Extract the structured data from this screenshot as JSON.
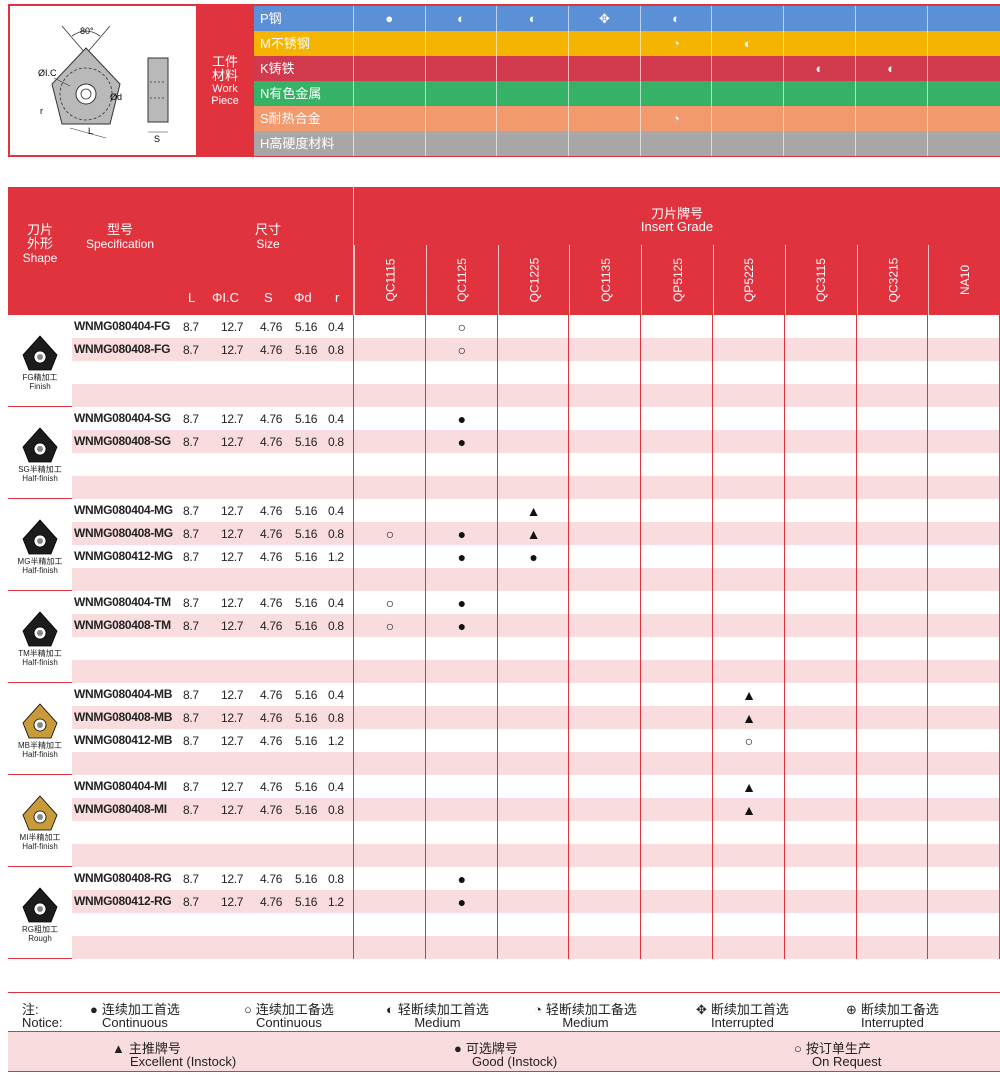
{
  "diagram": {
    "angle": "80°",
    "ic": "ØI.C",
    "d": "Ød",
    "r": "r",
    "l": "L",
    "s": "S"
  },
  "workpiece": {
    "label_cn_1": "工件",
    "label_cn_2": "材料",
    "label_en_1": "Work",
    "label_en_2": "Piece"
  },
  "materials": [
    {
      "name": "P钢",
      "color": "#5b8fd6",
      "marks": [
        "●",
        "◐",
        "◐",
        "✥",
        "◐",
        "",
        "",
        "",
        ""
      ]
    },
    {
      "name": "M不锈钢",
      "color": "#f5b400",
      "marks": [
        "",
        "",
        "",
        "",
        "◔",
        "◐",
        "",
        "",
        ""
      ]
    },
    {
      "name": "K铸铁",
      "color": "#d13a4d",
      "marks": [
        "",
        "",
        "",
        "",
        "",
        "",
        "◐",
        "◐",
        ""
      ]
    },
    {
      "name": "N有色金属",
      "color": "#35b265",
      "marks": [
        "",
        "",
        "",
        "",
        "",
        "",
        "",
        "",
        ""
      ]
    },
    {
      "name": "S耐热合金",
      "color": "#f29a6e",
      "marks": [
        "",
        "",
        "",
        "",
        "◔",
        "",
        "",
        "",
        ""
      ]
    },
    {
      "name": "H高硬度材料",
      "color": "#a7a7a7",
      "marks": [
        "",
        "",
        "",
        "",
        "",
        "",
        "",
        "",
        ""
      ]
    }
  ],
  "header": {
    "shape_cn_1": "刀片",
    "shape_cn_2": "外形",
    "shape_en": "Shape",
    "spec_cn": "型号",
    "spec_en": "Specification",
    "size_cn": "尺寸",
    "size_en": "Size",
    "grade_cn": "刀片牌号",
    "grade_en": "Insert Grade",
    "dims": [
      "L",
      "ΦI.C",
      "S",
      "Φd",
      "r"
    ],
    "grades": [
      "QC1115",
      "QC1125",
      "QC1225",
      "QC1135",
      "QP5125",
      "QP5225",
      "QC3115",
      "QC3215",
      "NA10"
    ]
  },
  "groups": [
    {
      "caption_1": "FG精加工",
      "caption_2": "Finish",
      "color": "#1c1c1c",
      "rows": [
        {
          "spec": "WNMG080404-FG",
          "dims": [
            "8.7",
            "12.7",
            "4.76",
            "5.16",
            "0.4"
          ],
          "marks": [
            "",
            "○",
            "",
            "",
            "",
            "",
            "",
            "",
            ""
          ]
        },
        {
          "spec": "WNMG080408-FG",
          "dims": [
            "8.7",
            "12.7",
            "4.76",
            "5.16",
            "0.8"
          ],
          "marks": [
            "",
            "○",
            "",
            "",
            "",
            "",
            "",
            "",
            ""
          ]
        }
      ]
    },
    {
      "caption_1": "SG半精加工",
      "caption_2": "Half-finish",
      "color": "#1c1c1c",
      "rows": [
        {
          "spec": "WNMG080404-SG",
          "dims": [
            "8.7",
            "12.7",
            "4.76",
            "5.16",
            "0.4"
          ],
          "marks": [
            "",
            "●",
            "",
            "",
            "",
            "",
            "",
            "",
            ""
          ]
        },
        {
          "spec": "WNMG080408-SG",
          "dims": [
            "8.7",
            "12.7",
            "4.76",
            "5.16",
            "0.8"
          ],
          "marks": [
            "",
            "●",
            "",
            "",
            "",
            "",
            "",
            "",
            ""
          ]
        }
      ]
    },
    {
      "caption_1": "MG半精加工",
      "caption_2": "Half-finish",
      "color": "#1c1c1c",
      "rows": [
        {
          "spec": "WNMG080404-MG",
          "dims": [
            "8.7",
            "12.7",
            "4.76",
            "5.16",
            "0.4"
          ],
          "marks": [
            "",
            "",
            "▲",
            "",
            "",
            "",
            "",
            "",
            ""
          ]
        },
        {
          "spec": "WNMG080408-MG",
          "dims": [
            "8.7",
            "12.7",
            "4.76",
            "5.16",
            "0.8"
          ],
          "marks": [
            "○",
            "●",
            "▲",
            "",
            "",
            "",
            "",
            "",
            ""
          ]
        },
        {
          "spec": "WNMG080412-MG",
          "dims": [
            "8.7",
            "12.7",
            "4.76",
            "5.16",
            "1.2"
          ],
          "marks": [
            "",
            "●",
            "●",
            "",
            "",
            "",
            "",
            "",
            ""
          ]
        }
      ]
    },
    {
      "caption_1": "TM半精加工",
      "caption_2": "Half-finish",
      "color": "#1c1c1c",
      "rows": [
        {
          "spec": "WNMG080404-TM",
          "dims": [
            "8.7",
            "12.7",
            "4.76",
            "5.16",
            "0.4"
          ],
          "marks": [
            "○",
            "●",
            "",
            "",
            "",
            "",
            "",
            "",
            ""
          ]
        },
        {
          "spec": "WNMG080408-TM",
          "dims": [
            "8.7",
            "12.7",
            "4.76",
            "5.16",
            "0.8"
          ],
          "marks": [
            "○",
            "●",
            "",
            "",
            "",
            "",
            "",
            "",
            ""
          ]
        }
      ]
    },
    {
      "caption_1": "MB半精加工",
      "caption_2": "Half-finish",
      "color": "#c99a3a",
      "rows": [
        {
          "spec": "WNMG080404-MB",
          "dims": [
            "8.7",
            "12.7",
            "4.76",
            "5.16",
            "0.4"
          ],
          "marks": [
            "",
            "",
            "",
            "",
            "",
            "▲",
            "",
            "",
            ""
          ]
        },
        {
          "spec": "WNMG080408-MB",
          "dims": [
            "8.7",
            "12.7",
            "4.76",
            "5.16",
            "0.8"
          ],
          "marks": [
            "",
            "",
            "",
            "",
            "",
            "▲",
            "",
            "",
            ""
          ]
        },
        {
          "spec": "WNMG080412-MB",
          "dims": [
            "8.7",
            "12.7",
            "4.76",
            "5.16",
            "1.2"
          ],
          "marks": [
            "",
            "",
            "",
            "",
            "",
            "○",
            "",
            "",
            ""
          ]
        }
      ]
    },
    {
      "caption_1": "MI半精加工",
      "caption_2": "Half-finish",
      "color": "#c99a3a",
      "rows": [
        {
          "spec": "WNMG080404-MI",
          "dims": [
            "8.7",
            "12.7",
            "4.76",
            "5.16",
            "0.4"
          ],
          "marks": [
            "",
            "",
            "",
            "",
            "",
            "▲",
            "",
            "",
            ""
          ]
        },
        {
          "spec": "WNMG080408-MI",
          "dims": [
            "8.7",
            "12.7",
            "4.76",
            "5.16",
            "0.8"
          ],
          "marks": [
            "",
            "",
            "",
            "",
            "",
            "▲",
            "",
            "",
            ""
          ]
        }
      ]
    },
    {
      "caption_1": "RG粗加工",
      "caption_2": "Rough",
      "color": "#1c1c1c",
      "rows": [
        {
          "spec": "WNMG080408-RG",
          "dims": [
            "8.7",
            "12.7",
            "4.76",
            "5.16",
            "0.8"
          ],
          "marks": [
            "",
            "●",
            "",
            "",
            "",
            "",
            "",
            "",
            ""
          ]
        },
        {
          "spec": "WNMG080412-RG",
          "dims": [
            "8.7",
            "12.7",
            "4.76",
            "5.16",
            "1.2"
          ],
          "marks": [
            "",
            "●",
            "",
            "",
            "",
            "",
            "",
            "",
            ""
          ]
        }
      ]
    }
  ],
  "notice": {
    "label_cn": "注:",
    "label_en": "Notice:",
    "items": [
      {
        "sym": "●",
        "cn": "连续加工首选",
        "en": "Continuous"
      },
      {
        "sym": "○",
        "cn": "连续加工备选",
        "en": "Continuous"
      },
      {
        "sym": "◐",
        "cn": "轻断续加工首选",
        "en": "Medium"
      },
      {
        "sym": "◔",
        "cn": "轻断续加工备选",
        "en": "Medium"
      },
      {
        "sym": "✥",
        "cn": "断续加工首选",
        "en": "Interrupted"
      },
      {
        "sym": "⊕",
        "cn": "断续加工备选",
        "en": "Interrupted"
      }
    ],
    "items2": [
      {
        "sym": "▲",
        "cn": "主推牌号",
        "en": "Excellent (Instock)"
      },
      {
        "sym": "●",
        "cn": "可选牌号",
        "en": "Good (Instock)"
      },
      {
        "sym": "○",
        "cn": "按订单生产",
        "en": "On Request"
      }
    ]
  }
}
